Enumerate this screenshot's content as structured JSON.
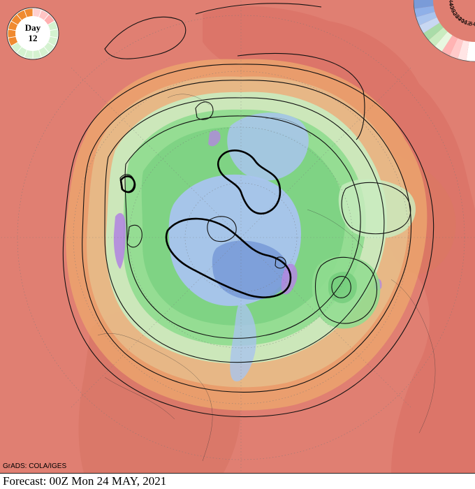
{
  "badge": {
    "label": "Day",
    "number": "12"
  },
  "footer": {
    "forecast": "Forecast: 00Z Mon 24 MAY, 2021"
  },
  "credit": "GrADS: COLA/IGES",
  "legend": {
    "ticks": [
      "-4",
      "-8",
      "-12",
      "-16",
      "-20",
      "-24",
      "-28",
      "-32",
      "-36",
      "-40",
      "-44"
    ]
  },
  "colors": {
    "ocean_warm": "#e07f72",
    "warm_orange": "#eb9c6f",
    "mid_tan": "#e8b889",
    "cool_green_light": "#c9ecc0",
    "cool_green": "#8fdc8f",
    "cold_blue": "#a9c4ee",
    "very_cold": "#7a9bd8",
    "coldest_purple": "#b388e0"
  }
}
